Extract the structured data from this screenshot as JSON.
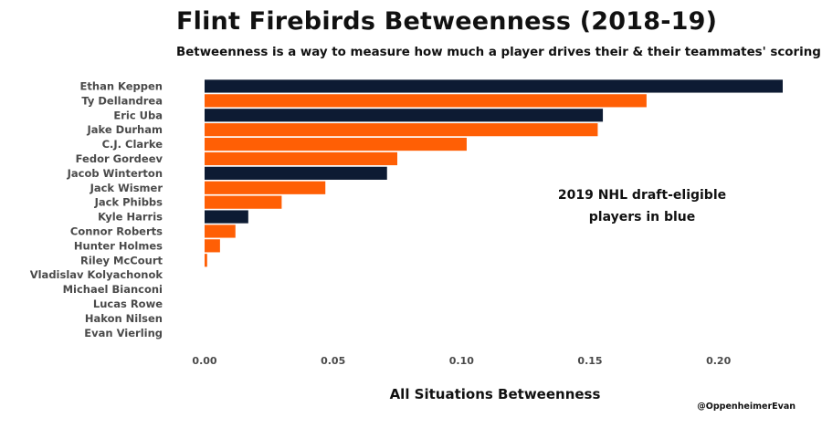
{
  "colors": {
    "blue": "#0d1b33",
    "orange": "#ff5f05"
  },
  "chart_data": {
    "type": "bar",
    "orientation": "horizontal",
    "title": "Flint Firebirds Betweenness (2018-19)",
    "subtitle": "Betweenness is a way to measure how much a player drives their & their teammates' scoring",
    "xlabel": "All Situations Betweenness",
    "ylabel": "",
    "xlim": [
      0,
      0.225
    ],
    "xticks": [
      "0.00",
      "0.05",
      "0.10",
      "0.15",
      "0.20"
    ],
    "xtick_values": [
      0,
      0.05,
      0.1,
      0.15,
      0.2
    ],
    "categories": [
      "Ethan Keppen",
      "Ty Dellandrea",
      "Eric Uba",
      "Jake Durham",
      "C.J. Clarke",
      "Fedor Gordeev",
      "Jacob Winterton",
      "Jack Wismer",
      "Jack Phibbs",
      "Kyle Harris",
      "Connor Roberts",
      "Hunter Holmes",
      "Riley McCourt",
      "Vladislav Kolyachonok",
      "Michael Bianconi",
      "Lucas Rowe",
      "Hakon Nilsen",
      "Evan Vierling"
    ],
    "values": [
      0.225,
      0.172,
      0.155,
      0.153,
      0.102,
      0.075,
      0.071,
      0.047,
      0.03,
      0.017,
      0.012,
      0.006,
      0.001,
      0,
      0,
      0,
      0,
      0
    ],
    "draft_eligible": [
      true,
      false,
      true,
      false,
      false,
      false,
      true,
      false,
      false,
      true,
      false,
      false,
      false,
      false,
      false,
      false,
      false,
      false
    ],
    "annotation_line1": "2019 NHL draft-eligible",
    "annotation_line2": "players in blue",
    "credit": "@OppenheimerEvan",
    "grid": false
  }
}
